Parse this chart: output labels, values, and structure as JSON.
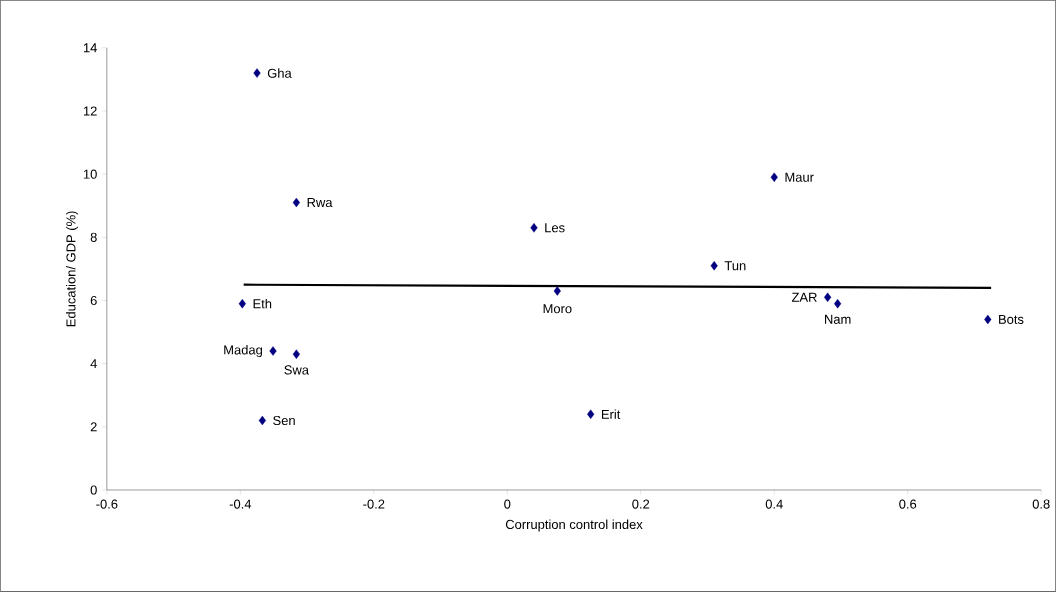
{
  "chart_data": {
    "type": "scatter",
    "xlabel": "Corruption control index",
    "ylabel": "Education/ GDP (%)",
    "xlim": [
      -0.6,
      0.8
    ],
    "ylim": [
      0,
      14
    ],
    "xticks": [
      -0.6,
      -0.4,
      -0.2,
      0,
      0.2,
      0.4,
      0.6,
      0.8
    ],
    "yticks": [
      0,
      2,
      4,
      6,
      8,
      10,
      12,
      14
    ],
    "marker": "diamond",
    "grid": false,
    "series": [
      {
        "color": "#000080",
        "x": [
          -0.375,
          -0.316,
          0.04,
          0.4,
          0.31,
          -0.397,
          0.075,
          0.48,
          0.495,
          0.72,
          -0.351,
          -0.316,
          -0.367,
          0.125
        ],
        "values": [
          13.2,
          9.1,
          8.3,
          9.9,
          7.1,
          5.9,
          6.3,
          6.1,
          5.9,
          5.4,
          4.4,
          4.3,
          2.2,
          2.4
        ]
      },
      {
        "type": "line",
        "marker": "none",
        "color": "#000000",
        "x": [
          -0.395,
          0.725
        ],
        "values": [
          6.5,
          6.4
        ]
      }
    ],
    "annotations": [
      {
        "text": "Gha",
        "x": -0.375,
        "y": 13.2
      },
      {
        "text": "Rwa",
        "x": -0.316,
        "y": 9.1
      },
      {
        "text": "Les",
        "x": 0.04,
        "y": 8.3
      },
      {
        "text": "Maur",
        "x": 0.4,
        "y": 9.9
      },
      {
        "text": "Tun",
        "x": 0.31,
        "y": 7.1
      },
      {
        "text": "Eth",
        "x": -0.397,
        "y": 5.9
      },
      {
        "text": "Moro",
        "x": 0.075,
        "y": 6.3
      },
      {
        "text": "ZAR",
        "x": 0.48,
        "y": 6.1
      },
      {
        "text": "Nam",
        "x": 0.495,
        "y": 5.9
      },
      {
        "text": "Bots",
        "x": 0.72,
        "y": 5.4
      },
      {
        "text": "Madag",
        "x": -0.351,
        "y": 4.4
      },
      {
        "text": "Swa",
        "x": -0.316,
        "y": 4.3
      },
      {
        "text": "Sen",
        "x": -0.367,
        "y": 2.2
      },
      {
        "text": "Erit",
        "x": 0.125,
        "y": 2.4
      }
    ]
  }
}
